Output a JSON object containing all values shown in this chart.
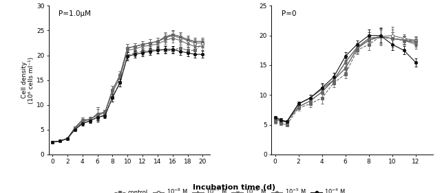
{
  "panel1_title": "P=1.0μM",
  "panel2_title": "P=0",
  "xlabel": "Incubation time (d)",
  "ylabel": "Cell density\n(10⁶ cells ml⁻¹)",
  "panel1_xlim": [
    -0.5,
    21
  ],
  "panel1_ylim": [
    0,
    30
  ],
  "panel2_xlim": [
    -0.3,
    13.5
  ],
  "panel2_ylim": [
    0,
    25
  ],
  "panel1_xticks": [
    0,
    2,
    4,
    6,
    8,
    10,
    12,
    14,
    16,
    18,
    20
  ],
  "panel2_xticks": [
    0,
    2,
    4,
    6,
    8,
    10,
    12
  ],
  "panel1_yticks": [
    0,
    5,
    10,
    15,
    20,
    25,
    30
  ],
  "panel2_yticks": [
    0,
    5,
    10,
    15,
    20,
    25
  ],
  "p1_x": [
    0,
    1,
    2,
    3,
    4,
    5,
    6,
    7,
    8,
    9,
    10,
    11,
    12,
    13,
    14,
    15,
    16,
    17,
    18,
    19,
    20
  ],
  "p1_control_y": [
    2.5,
    2.7,
    3.2,
    5.2,
    6.3,
    6.7,
    7.5,
    8.0,
    11.5,
    14.5,
    20.0,
    20.5,
    20.8,
    21.0,
    21.2,
    21.0,
    21.0,
    21.5,
    21.0,
    21.0,
    22.5
  ],
  "p1_control_e": [
    0.15,
    0.15,
    0.2,
    0.3,
    0.4,
    0.4,
    0.5,
    0.5,
    0.8,
    0.8,
    0.8,
    0.7,
    0.7,
    0.7,
    0.7,
    0.7,
    0.7,
    0.7,
    0.7,
    0.7,
    0.7
  ],
  "p1_1e8_y": [
    2.5,
    2.7,
    3.2,
    5.4,
    6.8,
    7.0,
    8.2,
    8.5,
    13.0,
    16.0,
    21.5,
    21.8,
    22.2,
    22.5,
    22.8,
    23.5,
    24.0,
    23.5,
    23.0,
    22.5,
    22.5
  ],
  "p1_1e8_e": [
    0.15,
    0.15,
    0.2,
    0.3,
    0.4,
    0.4,
    1.3,
    0.5,
    0.8,
    0.8,
    0.8,
    0.7,
    0.7,
    0.7,
    0.7,
    0.9,
    0.9,
    0.9,
    0.7,
    0.7,
    0.7
  ],
  "p1_1e7_y": [
    2.5,
    2.7,
    3.2,
    5.4,
    7.0,
    7.0,
    8.2,
    8.5,
    13.0,
    16.0,
    21.5,
    21.8,
    22.2,
    22.5,
    22.8,
    23.5,
    24.2,
    23.8,
    23.2,
    22.8,
    22.8
  ],
  "p1_1e7_e": [
    0.15,
    0.15,
    0.2,
    0.3,
    0.4,
    0.4,
    1.3,
    0.5,
    0.8,
    0.8,
    0.8,
    0.7,
    0.7,
    0.7,
    0.7,
    0.9,
    0.9,
    0.9,
    0.7,
    0.7,
    0.7
  ],
  "p1_1e6_y": [
    2.5,
    2.7,
    3.2,
    5.2,
    6.5,
    7.2,
    7.8,
    8.5,
    12.5,
    15.5,
    21.0,
    21.3,
    21.8,
    22.0,
    22.3,
    23.0,
    23.5,
    23.0,
    22.3,
    21.8,
    21.8
  ],
  "p1_1e6_e": [
    0.15,
    0.15,
    0.2,
    0.3,
    0.4,
    0.4,
    1.3,
    0.5,
    0.8,
    0.8,
    0.8,
    0.7,
    0.7,
    0.7,
    0.7,
    0.9,
    0.9,
    0.9,
    0.7,
    0.7,
    0.7
  ],
  "p1_1e5_y": [
    2.5,
    2.7,
    3.2,
    5.4,
    7.0,
    7.0,
    8.2,
    8.5,
    13.0,
    16.0,
    21.5,
    21.8,
    22.2,
    22.5,
    22.8,
    23.8,
    24.2,
    23.8,
    23.2,
    22.8,
    22.8
  ],
  "p1_1e5_e": [
    0.15,
    0.15,
    0.2,
    0.3,
    0.4,
    0.4,
    1.3,
    0.5,
    0.8,
    0.8,
    0.8,
    0.7,
    0.7,
    0.7,
    0.7,
    0.9,
    0.9,
    0.9,
    0.7,
    0.7,
    0.7
  ],
  "p1_1e4_y": [
    2.5,
    2.7,
    3.2,
    5.0,
    6.2,
    6.8,
    7.5,
    7.8,
    11.5,
    14.5,
    19.8,
    20.2,
    20.5,
    20.8,
    21.0,
    21.2,
    21.2,
    20.8,
    20.5,
    20.2,
    20.2
  ],
  "p1_1e4_e": [
    0.15,
    0.15,
    0.2,
    0.3,
    0.4,
    0.4,
    0.7,
    0.5,
    0.8,
    0.8,
    0.8,
    0.7,
    0.7,
    0.7,
    0.7,
    0.7,
    0.7,
    0.7,
    0.7,
    0.7,
    0.7
  ],
  "p2_x": [
    0,
    0.5,
    1,
    2,
    3,
    4,
    5,
    6,
    7,
    8,
    9,
    10,
    11,
    12
  ],
  "p2_control_y": [
    5.5,
    5.2,
    5.0,
    7.8,
    8.5,
    9.5,
    12.0,
    13.5,
    17.5,
    18.5,
    19.8,
    19.5,
    19.3,
    19.2
  ],
  "p2_control_e": [
    0.3,
    0.3,
    0.3,
    0.4,
    0.5,
    1.0,
    0.7,
    0.7,
    0.7,
    1.0,
    1.5,
    1.0,
    0.7,
    0.7
  ],
  "p2_1e8_y": [
    6.0,
    5.5,
    5.5,
    8.0,
    9.0,
    10.5,
    12.5,
    14.5,
    17.8,
    19.2,
    19.8,
    20.0,
    19.5,
    19.2
  ],
  "p2_1e8_e": [
    0.3,
    0.3,
    0.3,
    0.4,
    0.5,
    0.8,
    0.7,
    0.7,
    0.7,
    1.0,
    1.2,
    1.5,
    0.7,
    0.7
  ],
  "p2_1e7_y": [
    6.0,
    5.5,
    5.5,
    8.0,
    9.0,
    10.5,
    12.5,
    14.5,
    17.8,
    19.2,
    19.8,
    19.5,
    19.2,
    19.0
  ],
  "p2_1e7_e": [
    0.3,
    0.3,
    0.3,
    0.4,
    0.5,
    0.8,
    0.7,
    0.7,
    0.7,
    1.0,
    1.2,
    1.5,
    0.7,
    0.7
  ],
  "p2_1e6_y": [
    6.2,
    5.8,
    5.5,
    8.5,
    9.5,
    11.0,
    12.5,
    15.5,
    18.0,
    19.5,
    19.8,
    19.5,
    19.2,
    18.8
  ],
  "p2_1e6_e": [
    0.3,
    0.3,
    0.3,
    0.4,
    0.5,
    0.8,
    0.7,
    0.7,
    0.7,
    1.0,
    1.2,
    1.0,
    0.7,
    0.7
  ],
  "p2_1e5_y": [
    6.2,
    5.8,
    5.5,
    8.5,
    9.5,
    11.0,
    12.5,
    15.5,
    18.0,
    19.5,
    19.8,
    19.5,
    19.2,
    18.5
  ],
  "p2_1e5_e": [
    0.3,
    0.3,
    0.3,
    0.4,
    0.5,
    0.8,
    0.7,
    0.7,
    0.7,
    1.0,
    1.2,
    1.0,
    0.7,
    0.7
  ],
  "p2_1e4_y": [
    6.2,
    5.8,
    5.5,
    8.5,
    9.5,
    11.2,
    13.0,
    16.5,
    18.5,
    20.0,
    20.0,
    18.5,
    17.5,
    15.5
  ],
  "p2_1e4_e": [
    0.3,
    0.3,
    0.3,
    0.4,
    0.5,
    0.8,
    0.7,
    0.7,
    0.7,
    1.0,
    1.2,
    1.0,
    0.7,
    0.7
  ],
  "gray": "#666666",
  "dark": "#111111"
}
